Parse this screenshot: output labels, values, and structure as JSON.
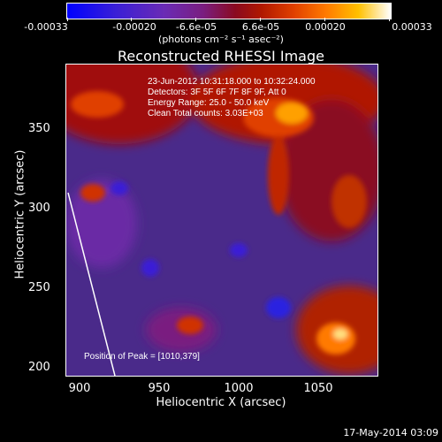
{
  "colorbar": {
    "tick_labels": [
      "-0.00033",
      "-0.00020",
      "-6.6e-05",
      "6.6e-05",
      "0.00020",
      "0.00033"
    ],
    "units": "(photons cm⁻² s⁻¹ asec⁻²)"
  },
  "title": "Reconstructed RHESSI Image",
  "info_lines": [
    "23-Jun-2012 10:31:18.000 to 10:32:24.000",
    "Detectors: 3F 5F 6F 7F 8F 9F, Att 0",
    "Energy Range: 25.0 - 50.0 keV",
    "Clean     Total counts: 3.03E+03"
  ],
  "peak_text": "Position of Peak = [1010,379]",
  "y_axis": {
    "label": "Heliocentric Y (arcsec)",
    "ticks": [
      "350",
      "300",
      "250",
      "200"
    ]
  },
  "x_axis": {
    "label": "Heliocentric X (arcsec)",
    "ticks": [
      "900",
      "950",
      "1000",
      "1050"
    ]
  },
  "footer_date": "17-May-2014 03:09",
  "colors": {
    "background": "#000000",
    "low": "#0000ff",
    "mid": "#7a1e80",
    "high": "#ffffff"
  }
}
